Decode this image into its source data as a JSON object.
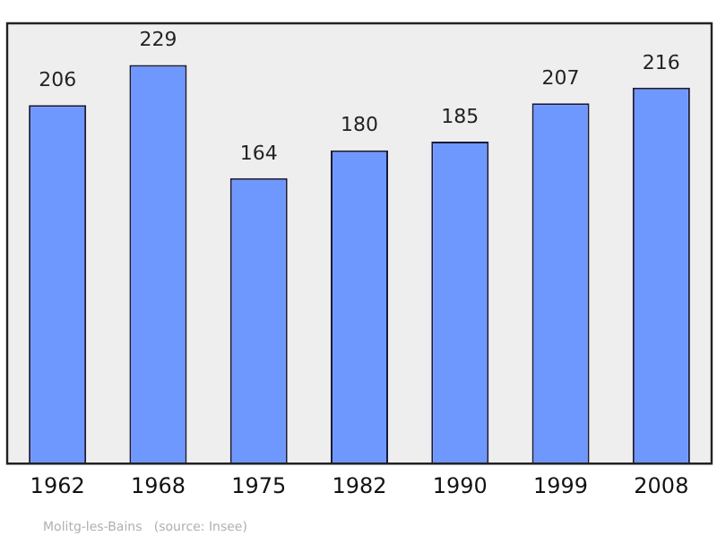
{
  "chart_data": {
    "type": "bar",
    "categories": [
      "1962",
      "1968",
      "1975",
      "1982",
      "1990",
      "1999",
      "2008"
    ],
    "values": [
      206,
      229,
      164,
      180,
      185,
      207,
      216
    ],
    "color": "#6f98ff",
    "ylim": [
      0,
      253
    ],
    "data_labels": true,
    "grid": false,
    "legend": false,
    "tick_labels": "x",
    "annotations": [
      "Molitg-les-Bains   (source: Insee)"
    ]
  }
}
